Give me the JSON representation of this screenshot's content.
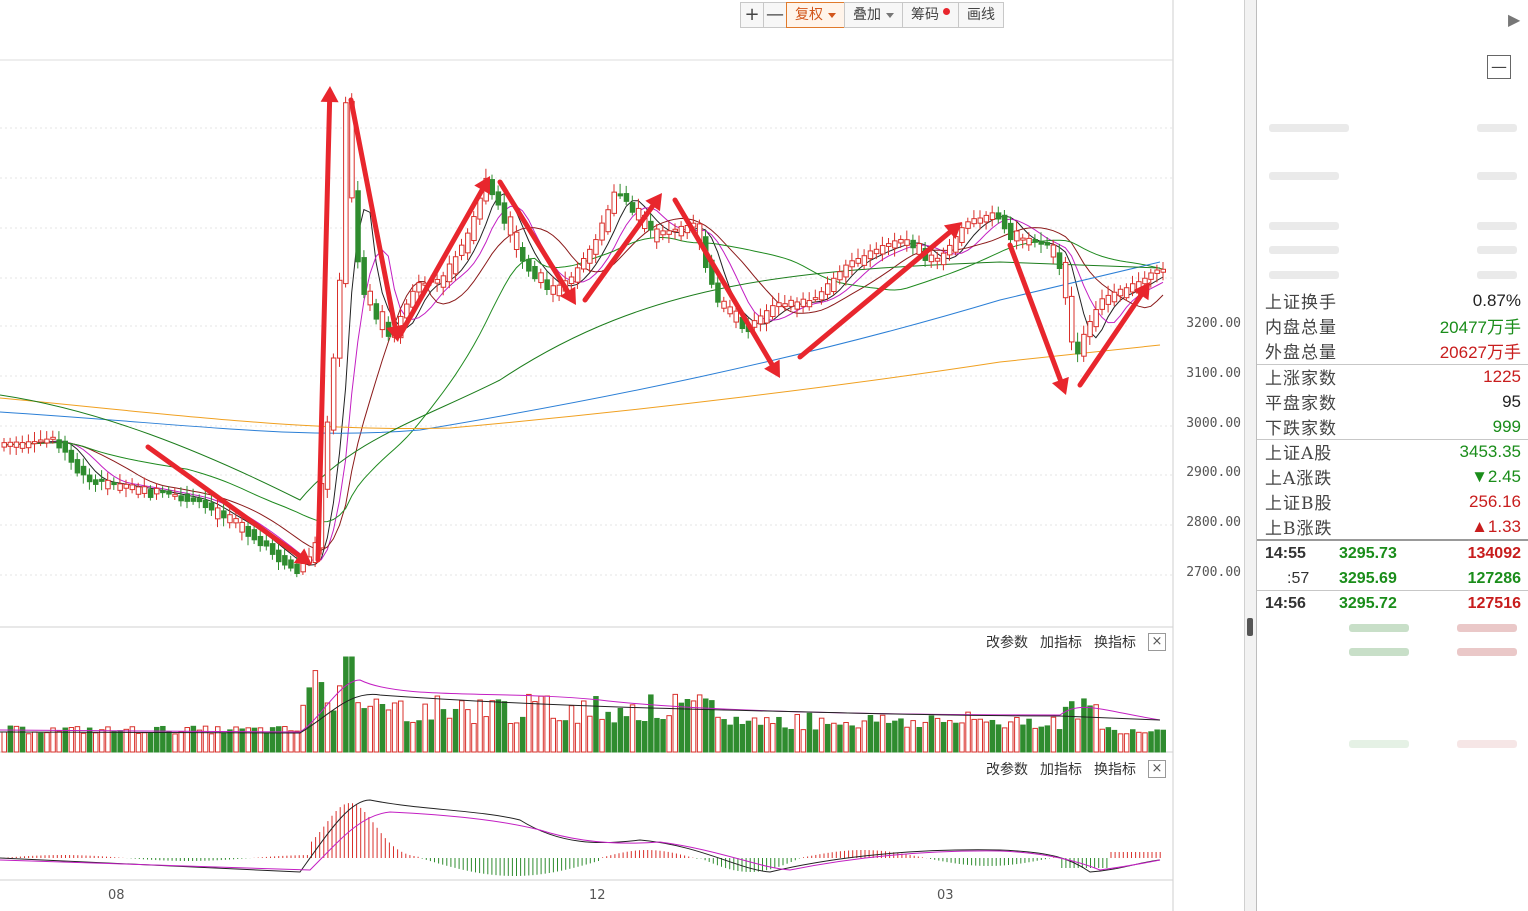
{
  "toolbar": {
    "add_label": "+",
    "minus_label": "—",
    "fuquan_label": "复权",
    "overlay_label": "叠加",
    "chips_label": "筹码",
    "draw_label": "画线"
  },
  "price_axis": {
    "ticks": [
      "3200.00",
      "3100.00",
      "3000.00",
      "2900.00",
      "2800.00",
      "2700.00"
    ]
  },
  "volume_panel": {
    "edit_params": "改参数",
    "add_indicator": "加指标",
    "switch_indicator": "换指标",
    "close": "×"
  },
  "macd_panel": {
    "edit_params": "改参数",
    "add_indicator": "加指标",
    "switch_indicator": "换指标",
    "close": "×"
  },
  "x_axis": {
    "labels": [
      "08",
      "12",
      "03"
    ]
  },
  "colors": {
    "up": "#d9302b",
    "down": "#2f8c2f",
    "arrow": "#e8262d",
    "ma5": "#222222",
    "ma10": "#c31fc3",
    "ma20": "#8b1a1a",
    "ma60": "#1f8a1f",
    "ma120": "#2b7fd6",
    "ma250": "#f0a020"
  },
  "right_panel": {
    "stats": [
      {
        "label": "上证换手",
        "value": "0.87%",
        "color": "dark"
      },
      {
        "label": "内盘总量",
        "value": "20477万手",
        "color": "green"
      },
      {
        "label": "外盘总量",
        "value": "20627万手",
        "color": "red"
      },
      {
        "label": "上涨家数",
        "value": "1225",
        "color": "red"
      },
      {
        "label": "平盘家数",
        "value": "95",
        "color": "dark"
      },
      {
        "label": "下跌家数",
        "value": "999",
        "color": "green"
      },
      {
        "label": "上证A股",
        "value": "3453.35",
        "color": "green"
      },
      {
        "label": "上A涨跌",
        "value": "▼2.45",
        "color": "green"
      },
      {
        "label": "上证B股",
        "value": "256.16",
        "color": "red"
      },
      {
        "label": "上B涨跌",
        "value": "▲1.33",
        "color": "red"
      }
    ],
    "ticks": [
      {
        "time": "14:55",
        "price": "3295.73",
        "volume": "134092"
      },
      {
        "time": ":57",
        "price": "3295.69",
        "volume": "127286"
      },
      {
        "time": "14:56",
        "price": "3295.72",
        "volume": "127516"
      }
    ]
  }
}
